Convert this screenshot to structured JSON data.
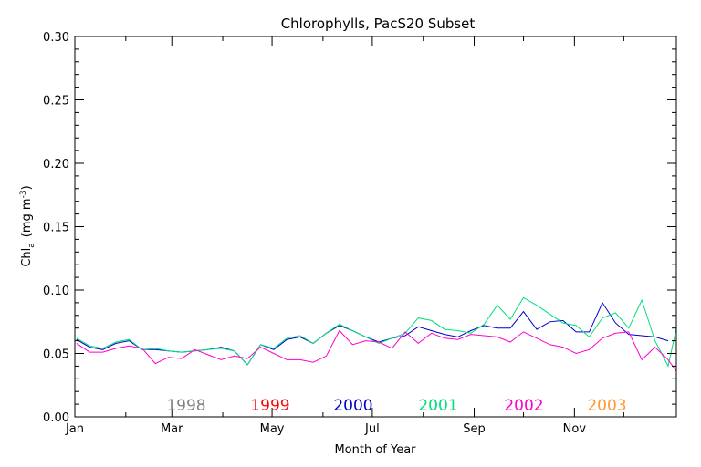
{
  "chart_data": {
    "type": "line",
    "title": "Chlorophylls, PacS20 Subset",
    "xlabel": "Month of Year",
    "ylabel_main": "Chl",
    "ylabel_sub": "a",
    "ylabel_units": "(mg m",
    "ylabel_sup": "-3",
    "ylabel_close": ")",
    "x_tick_labels": [
      "Jan",
      "Mar",
      "May",
      "Jul",
      "Sep",
      "Nov"
    ],
    "y_tick_labels": [
      "0.00",
      "0.05",
      "0.10",
      "0.15",
      "0.20",
      "0.25",
      "0.30"
    ],
    "xlim": [
      0,
      366
    ],
    "ylim": [
      0,
      0.3
    ],
    "x_units": "day of year",
    "grid": false,
    "legend_placement": "bottom",
    "series": [
      {
        "name": "1998",
        "color": "#808080",
        "x": [],
        "y": []
      },
      {
        "name": "1999",
        "color": "#ff0000",
        "x": [],
        "y": []
      },
      {
        "name": "2000",
        "color": "#0000cc",
        "x": [
          1,
          9,
          17,
          25,
          33,
          41,
          49,
          57,
          65,
          73,
          81,
          89,
          97,
          105,
          113,
          121,
          129,
          137,
          145,
          153,
          161,
          169,
          177,
          185,
          193,
          201,
          209,
          217,
          225,
          233,
          241,
          249,
          257,
          265,
          273,
          281,
          289,
          297,
          305,
          313,
          321,
          329,
          337,
          345,
          353,
          361
        ],
        "y": [
          0.061,
          0.055,
          0.053,
          0.058,
          0.06,
          0.053,
          0.053,
          0.052,
          0.051,
          0.052,
          0.053,
          0.055,
          0.052,
          0.041,
          0.057,
          0.053,
          0.061,
          0.063,
          0.058,
          0.066,
          0.072,
          0.068,
          0.063,
          0.059,
          0.062,
          0.064,
          0.071,
          0.068,
          0.065,
          0.063,
          0.068,
          0.072,
          0.07,
          0.07,
          0.083,
          0.069,
          0.075,
          0.076,
          0.067,
          0.067,
          0.09,
          0.074,
          0.065,
          0.064,
          0.063,
          0.06
        ]
      },
      {
        "name": "2001",
        "color": "#00e07a",
        "x": [
          1,
          9,
          17,
          25,
          33,
          41,
          49,
          57,
          65,
          73,
          81,
          89,
          97,
          105,
          113,
          121,
          129,
          137,
          145,
          153,
          161,
          169,
          177,
          185,
          193,
          201,
          209,
          217,
          225,
          233,
          241,
          249,
          257,
          265,
          273,
          281,
          289,
          297,
          305,
          313,
          321,
          329,
          337,
          345,
          353,
          361,
          366
        ],
        "y": [
          0.062,
          0.056,
          0.054,
          0.059,
          0.061,
          0.053,
          0.054,
          0.052,
          0.051,
          0.052,
          0.053,
          0.054,
          0.052,
          0.041,
          0.057,
          0.054,
          0.062,
          0.064,
          0.058,
          0.066,
          0.073,
          0.068,
          0.063,
          0.058,
          0.062,
          0.066,
          0.078,
          0.076,
          0.069,
          0.068,
          0.066,
          0.073,
          0.088,
          0.077,
          0.094,
          0.088,
          0.081,
          0.074,
          0.072,
          0.063,
          0.078,
          0.082,
          0.07,
          0.092,
          0.06,
          0.04,
          0.07
        ]
      },
      {
        "name": "2002",
        "color": "#ff00cc",
        "x": [
          1,
          9,
          17,
          25,
          33,
          41,
          49,
          57,
          65,
          73,
          81,
          89,
          97,
          105,
          113,
          121,
          129,
          137,
          145,
          153,
          161,
          169,
          177,
          185,
          193,
          201,
          209,
          217,
          225,
          233,
          241,
          249,
          257,
          265,
          273,
          281,
          289,
          297,
          305,
          313,
          321,
          329,
          337,
          345,
          353,
          361,
          366
        ],
        "y": [
          0.058,
          0.051,
          0.051,
          0.054,
          0.056,
          0.054,
          0.042,
          0.047,
          0.046,
          0.053,
          0.049,
          0.045,
          0.048,
          0.046,
          0.055,
          0.05,
          0.045,
          0.045,
          0.043,
          0.048,
          0.068,
          0.057,
          0.06,
          0.059,
          0.054,
          0.067,
          0.058,
          0.066,
          0.062,
          0.061,
          0.065,
          0.064,
          0.063,
          0.059,
          0.067,
          0.062,
          0.057,
          0.055,
          0.05,
          0.053,
          0.062,
          0.066,
          0.067,
          0.045,
          0.055,
          0.045,
          0.036
        ]
      },
      {
        "name": "2003",
        "color": "#ff9933",
        "x": [],
        "y": []
      }
    ]
  }
}
